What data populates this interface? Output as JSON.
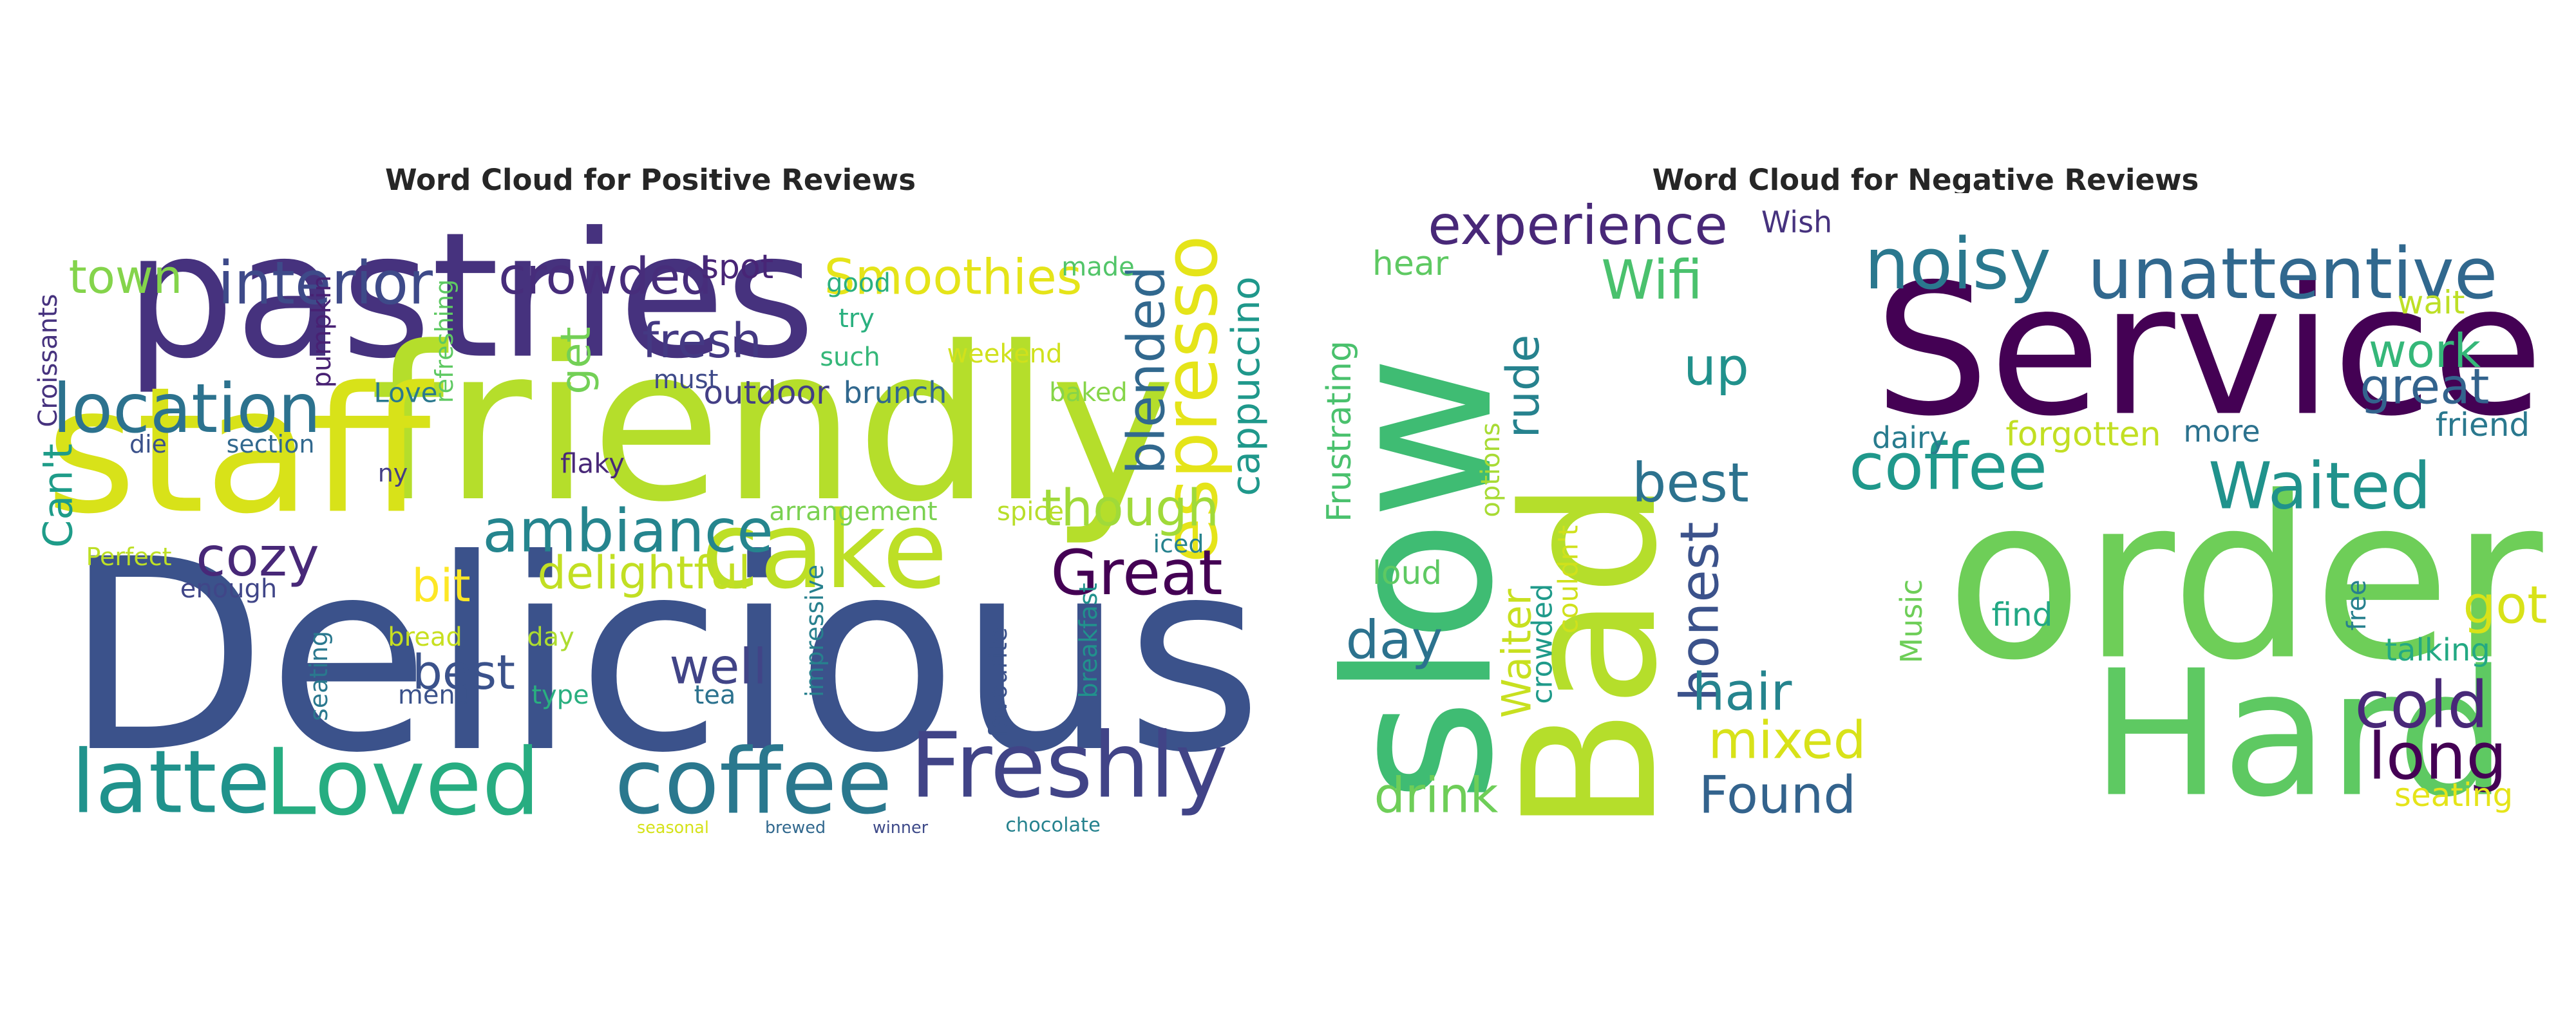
{
  "chart_data": [
    {
      "type": "wordcloud",
      "title": "Word Cloud for Positive Reviews",
      "colormap": "viridis",
      "background": "#ffffff",
      "words": [
        {
          "text": "Delicious",
          "weight": 1.0,
          "color": "#3b528b",
          "dir": "h"
        },
        {
          "text": "pastries",
          "weight": 0.92,
          "color": "#46327e",
          "dir": "h"
        },
        {
          "text": "friendly",
          "weight": 0.78,
          "color": "#b5de2b",
          "dir": "h"
        },
        {
          "text": "staff",
          "weight": 0.62,
          "color": "#d8e219",
          "dir": "h"
        },
        {
          "text": "Loved",
          "weight": 0.45,
          "color": "#27ad81",
          "dir": "h"
        },
        {
          "text": "cake",
          "weight": 0.45,
          "color": "#bddf26",
          "dir": "h"
        },
        {
          "text": "coffee",
          "weight": 0.42,
          "color": "#2a788e",
          "dir": "h"
        },
        {
          "text": "Freshly",
          "weight": 0.38,
          "color": "#414487",
          "dir": "h"
        },
        {
          "text": "latte",
          "weight": 0.38,
          "color": "#20928c",
          "dir": "h"
        },
        {
          "text": "espresso",
          "weight": 0.34,
          "color": "#e5e419",
          "dir": "v"
        },
        {
          "text": "location",
          "weight": 0.28,
          "color": "#2c728e",
          "dir": "h"
        },
        {
          "text": "ambiance",
          "weight": 0.28,
          "color": "#25858e",
          "dir": "h"
        },
        {
          "text": "Great",
          "weight": 0.28,
          "color": "#440154",
          "dir": "h"
        },
        {
          "text": "interior",
          "weight": 0.25,
          "color": "#3e4a89",
          "dir": "h"
        },
        {
          "text": "cozy",
          "weight": 0.25,
          "color": "#482878",
          "dir": "h"
        },
        {
          "text": "blended",
          "weight": 0.24,
          "color": "#31688e",
          "dir": "v"
        },
        {
          "text": "though",
          "weight": 0.22,
          "color": "#a0da39",
          "dir": "h"
        },
        {
          "text": "Smoothies",
          "weight": 0.22,
          "color": "#e5e419",
          "dir": "h"
        },
        {
          "text": "crowded",
          "weight": 0.22,
          "color": "#472d7b",
          "dir": "h"
        },
        {
          "text": "town",
          "weight": 0.21,
          "color": "#84d44b",
          "dir": "h"
        },
        {
          "text": "fresh",
          "weight": 0.21,
          "color": "#443983",
          "dir": "h"
        },
        {
          "text": "delightful",
          "weight": 0.21,
          "color": "#c2df23",
          "dir": "h"
        },
        {
          "text": "well",
          "weight": 0.2,
          "color": "#414487",
          "dir": "h"
        },
        {
          "text": "best",
          "weight": 0.2,
          "color": "#3b528b",
          "dir": "h"
        },
        {
          "text": "cappuccino",
          "weight": 0.18,
          "color": "#1f988b",
          "dir": "v"
        },
        {
          "text": "bit",
          "weight": 0.19,
          "color": "#fde725",
          "dir": "h"
        },
        {
          "text": "Can't",
          "weight": 0.18,
          "color": "#1e9c89",
          "dir": "v"
        },
        {
          "text": "get",
          "weight": 0.18,
          "color": "#73d056",
          "dir": "v"
        },
        {
          "text": "outdoor",
          "weight": 0.16,
          "color": "#433e85",
          "dir": "h"
        },
        {
          "text": "brunch",
          "weight": 0.15,
          "color": "#31688e",
          "dir": "h"
        },
        {
          "text": "spot",
          "weight": 0.15,
          "color": "#482576",
          "dir": "h"
        },
        {
          "text": "Croissants",
          "weight": 0.13,
          "color": "#46327e",
          "dir": "v"
        },
        {
          "text": "pumpkin",
          "weight": 0.13,
          "color": "#482173",
          "dir": "v"
        },
        {
          "text": "refreshing",
          "weight": 0.12,
          "color": "#5ec962",
          "dir": "v"
        },
        {
          "text": "Love",
          "weight": 0.13,
          "color": "#2a788e",
          "dir": "h"
        },
        {
          "text": "must",
          "weight": 0.13,
          "color": "#3e4a89",
          "dir": "h"
        },
        {
          "text": "such",
          "weight": 0.13,
          "color": "#35b779",
          "dir": "h"
        },
        {
          "text": "try",
          "weight": 0.13,
          "color": "#2ab07f",
          "dir": "h"
        },
        {
          "text": "good",
          "weight": 0.13,
          "color": "#2ab07f",
          "dir": "h"
        },
        {
          "text": "made",
          "weight": 0.13,
          "color": "#52c569",
          "dir": "h"
        },
        {
          "text": "weekend",
          "weight": 0.13,
          "color": "#d0e11c",
          "dir": "h"
        },
        {
          "text": "baked",
          "weight": 0.13,
          "color": "#86d549",
          "dir": "h"
        },
        {
          "text": "die",
          "weight": 0.12,
          "color": "#3b528b",
          "dir": "h"
        },
        {
          "text": "section",
          "weight": 0.12,
          "color": "#31688e",
          "dir": "h"
        },
        {
          "text": "ny",
          "weight": 0.12,
          "color": "#433e85",
          "dir": "h"
        },
        {
          "text": "flaky",
          "weight": 0.13,
          "color": "#482878",
          "dir": "h"
        },
        {
          "text": "arrangement",
          "weight": 0.13,
          "color": "#7ad151",
          "dir": "h"
        },
        {
          "text": "spice",
          "weight": 0.13,
          "color": "#b8de29",
          "dir": "h"
        },
        {
          "text": "iced",
          "weight": 0.12,
          "color": "#26828e",
          "dir": "h"
        },
        {
          "text": "Perfect",
          "weight": 0.12,
          "color": "#bddf26",
          "dir": "h"
        },
        {
          "text": "enough",
          "weight": 0.13,
          "color": "#404688",
          "dir": "h"
        },
        {
          "text": "bread",
          "weight": 0.13,
          "color": "#c8e020",
          "dir": "h"
        },
        {
          "text": "day",
          "weight": 0.13,
          "color": "#addc30",
          "dir": "h"
        },
        {
          "text": "seating",
          "weight": 0.12,
          "color": "#2a788e",
          "dir": "v"
        },
        {
          "text": "menu",
          "weight": 0.13,
          "color": "#3b528b",
          "dir": "h"
        },
        {
          "text": "type",
          "weight": 0.13,
          "color": "#29af7f",
          "dir": "h"
        },
        {
          "text": "tea",
          "weight": 0.13,
          "color": "#2c728e",
          "dir": "h"
        },
        {
          "text": "impressive",
          "weight": 0.12,
          "color": "#27808e",
          "dir": "v"
        },
        {
          "text": "favourite",
          "weight": 0.12,
          "color": "#3b528b",
          "dir": "v"
        },
        {
          "text": "breakfast",
          "weight": 0.12,
          "color": "#21918c",
          "dir": "v"
        },
        {
          "text": "seasonal",
          "weight": 0.12,
          "color": "#d5e21a",
          "dir": "h"
        },
        {
          "text": "brewed",
          "weight": 0.12,
          "color": "#31688e",
          "dir": "h"
        },
        {
          "text": "winner",
          "weight": 0.12,
          "color": "#3e4a89",
          "dir": "h"
        },
        {
          "text": "chocolate",
          "weight": 0.14,
          "color": "#26828e",
          "dir": "h"
        }
      ]
    },
    {
      "type": "wordcloud",
      "title": "Word Cloud for Negative Reviews",
      "colormap": "viridis",
      "background": "#ffffff",
      "words": [
        {
          "text": "order",
          "weight": 1.0,
          "color": "#6ece58",
          "dir": "h"
        },
        {
          "text": "Service",
          "weight": 0.92,
          "color": "#440154",
          "dir": "h"
        },
        {
          "text": "slow",
          "weight": 0.82,
          "color": "#3fbc73",
          "dir": "v"
        },
        {
          "text": "Bad",
          "weight": 0.78,
          "color": "#b5de2b",
          "dir": "v"
        },
        {
          "text": "Hard",
          "weight": 0.76,
          "color": "#5ec962",
          "dir": "h"
        },
        {
          "text": "unattentive",
          "weight": 0.33,
          "color": "#31688e",
          "dir": "h"
        },
        {
          "text": "noisy",
          "weight": 0.33,
          "color": "#2a788e",
          "dir": "h"
        },
        {
          "text": "Waited",
          "weight": 0.3,
          "color": "#20928c",
          "dir": "h"
        },
        {
          "text": "coffee",
          "weight": 0.3,
          "color": "#1f988b",
          "dir": "h"
        },
        {
          "text": "cold",
          "weight": 0.3,
          "color": "#482878",
          "dir": "h"
        },
        {
          "text": "long",
          "weight": 0.3,
          "color": "#440154",
          "dir": "h"
        },
        {
          "text": "experience",
          "weight": 0.26,
          "color": "#482878",
          "dir": "h"
        },
        {
          "text": "Wifi",
          "weight": 0.24,
          "color": "#4ac16d",
          "dir": "h"
        },
        {
          "text": "best",
          "weight": 0.24,
          "color": "#2c728e",
          "dir": "h"
        },
        {
          "text": "honest",
          "weight": 0.24,
          "color": "#3b528b",
          "dir": "v"
        },
        {
          "text": "day",
          "weight": 0.24,
          "color": "#2c728e",
          "dir": "h"
        },
        {
          "text": "hair",
          "weight": 0.23,
          "color": "#25848e",
          "dir": "h"
        },
        {
          "text": "mixed",
          "weight": 0.23,
          "color": "#d8e219",
          "dir": "h"
        },
        {
          "text": "Found",
          "weight": 0.22,
          "color": "#33638d",
          "dir": "h"
        },
        {
          "text": "drink",
          "weight": 0.22,
          "color": "#6ece58",
          "dir": "h"
        },
        {
          "text": "great",
          "weight": 0.22,
          "color": "#33638d",
          "dir": "h"
        },
        {
          "text": "work",
          "weight": 0.22,
          "color": "#35b779",
          "dir": "h"
        },
        {
          "text": "got",
          "weight": 0.22,
          "color": "#d8e219",
          "dir": "h"
        },
        {
          "text": "up",
          "weight": 0.22,
          "color": "#21918c",
          "dir": "h"
        },
        {
          "text": "rude",
          "weight": 0.2,
          "color": "#26828e",
          "dir": "v"
        },
        {
          "text": "Waiter",
          "weight": 0.2,
          "color": "#c8e020",
          "dir": "v"
        },
        {
          "text": "Frustrating",
          "weight": 0.14,
          "color": "#4ac16d",
          "dir": "v"
        },
        {
          "text": "hear",
          "weight": 0.14,
          "color": "#5ec962",
          "dir": "h"
        },
        {
          "text": "Wish",
          "weight": 0.13,
          "color": "#46327e",
          "dir": "h"
        },
        {
          "text": "wait",
          "weight": 0.13,
          "color": "#bddf26",
          "dir": "h"
        },
        {
          "text": "friend",
          "weight": 0.14,
          "color": "#2a788e",
          "dir": "h"
        },
        {
          "text": "forgotten",
          "weight": 0.14,
          "color": "#c2df23",
          "dir": "h"
        },
        {
          "text": "dairy",
          "weight": 0.13,
          "color": "#287c8e",
          "dir": "h"
        },
        {
          "text": "more",
          "weight": 0.13,
          "color": "#2c728e",
          "dir": "h"
        },
        {
          "text": "options",
          "weight": 0.12,
          "color": "#a8db34",
          "dir": "v"
        },
        {
          "text": "couldn't",
          "weight": 0.12,
          "color": "#d0e11c",
          "dir": "v"
        },
        {
          "text": "crowded",
          "weight": 0.13,
          "color": "#1f9a8a",
          "dir": "v"
        },
        {
          "text": "loud",
          "weight": 0.14,
          "color": "#5ec962",
          "dir": "h"
        },
        {
          "text": "Music",
          "weight": 0.13,
          "color": "#6ece58",
          "dir": "v"
        },
        {
          "text": "find",
          "weight": 0.14,
          "color": "#22a884",
          "dir": "h"
        },
        {
          "text": "free",
          "weight": 0.12,
          "color": "#27808e",
          "dir": "v"
        },
        {
          "text": "talking",
          "weight": 0.13,
          "color": "#23a983",
          "dir": "h"
        },
        {
          "text": "seating",
          "weight": 0.14,
          "color": "#e5e419",
          "dir": "h"
        }
      ]
    }
  ]
}
